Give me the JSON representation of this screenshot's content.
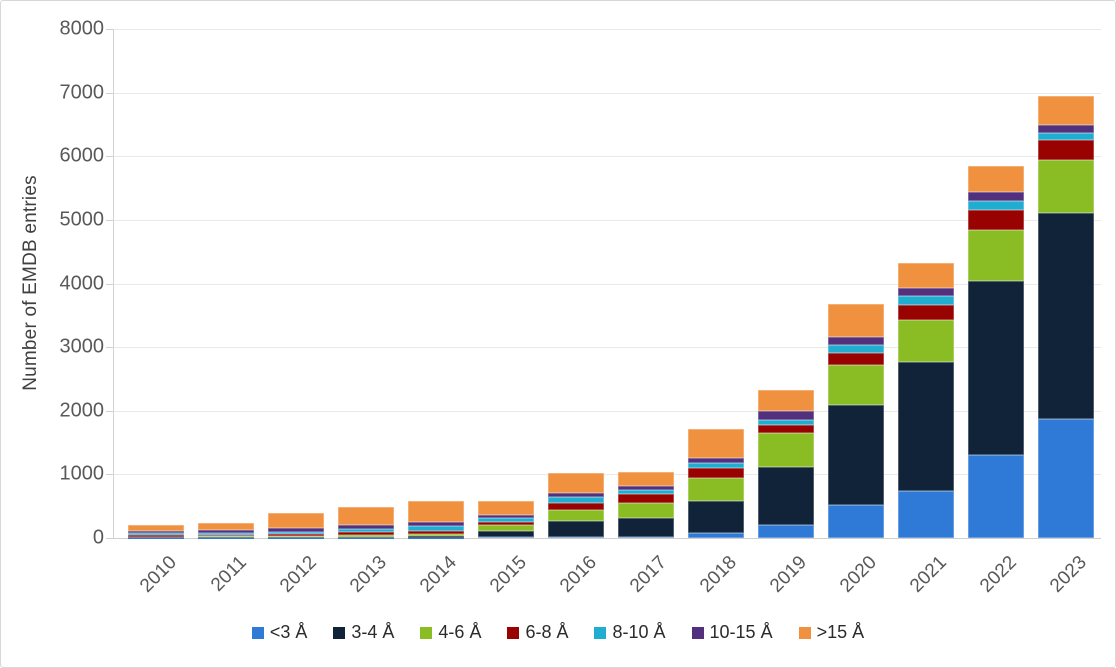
{
  "chart_data": {
    "type": "bar",
    "stacked": true,
    "title": "",
    "xlabel": "",
    "ylabel": "Number of EMDB entries",
    "ylim": [
      0,
      8000
    ],
    "ytick_interval": 1000,
    "grid": true,
    "legend_position": "bottom",
    "categories": [
      "2010",
      "2011",
      "2012",
      "2013",
      "2014",
      "2015",
      "2016",
      "2017",
      "2018",
      "2019",
      "2020",
      "2021",
      "2022",
      "2023"
    ],
    "series": [
      {
        "name": "<3 Å",
        "color": "#2E7AD6",
        "values": [
          2,
          2,
          4,
          5,
          8,
          16,
          18,
          20,
          75,
          210,
          525,
          735,
          1300,
          1875
        ]
      },
      {
        "name": "3-4 Å",
        "color": "#112338",
        "values": [
          8,
          10,
          16,
          14,
          16,
          100,
          245,
          290,
          510,
          900,
          1560,
          2030,
          2745,
          3235
        ]
      },
      {
        "name": "4-6 Å",
        "color": "#8ABC24",
        "values": [
          12,
          15,
          18,
          35,
          42,
          85,
          170,
          245,
          365,
          540,
          640,
          655,
          800,
          825
        ]
      },
      {
        "name": "6-8 Å",
        "color": "#980302",
        "values": [
          22,
          25,
          22,
          42,
          52,
          48,
          120,
          140,
          145,
          120,
          185,
          235,
          315,
          320
        ]
      },
      {
        "name": "8-10 Å",
        "color": "#21ADD0",
        "values": [
          28,
          32,
          38,
          50,
          68,
          58,
          90,
          68,
          80,
          90,
          130,
          145,
          145,
          105
        ]
      },
      {
        "name": "10-15 Å",
        "color": "#52307E",
        "values": [
          33,
          41,
          62,
          54,
          62,
          52,
          67,
          52,
          80,
          140,
          115,
          130,
          130,
          125
        ]
      },
      {
        "name": ">15 Å",
        "color": "#F0913F",
        "values": [
          105,
          115,
          230,
          295,
          342,
          220,
          320,
          225,
          460,
          330,
          520,
          400,
          420,
          465
        ]
      }
    ],
    "totals": [
      210,
      240,
      390,
      495,
      590,
      579,
      1030,
      1040,
      1715,
      2330,
      3675,
      4330,
      5855,
      6950
    ]
  },
  "colors": {
    "background": "#ffffff",
    "figure_border": "#d7d7d7",
    "gridline": "#e9e9e9",
    "axis_line": "#cfcfcf",
    "tick_text": "#595959",
    "ylabel_text": "#404040",
    "legend_text": "#2b2b2b"
  }
}
